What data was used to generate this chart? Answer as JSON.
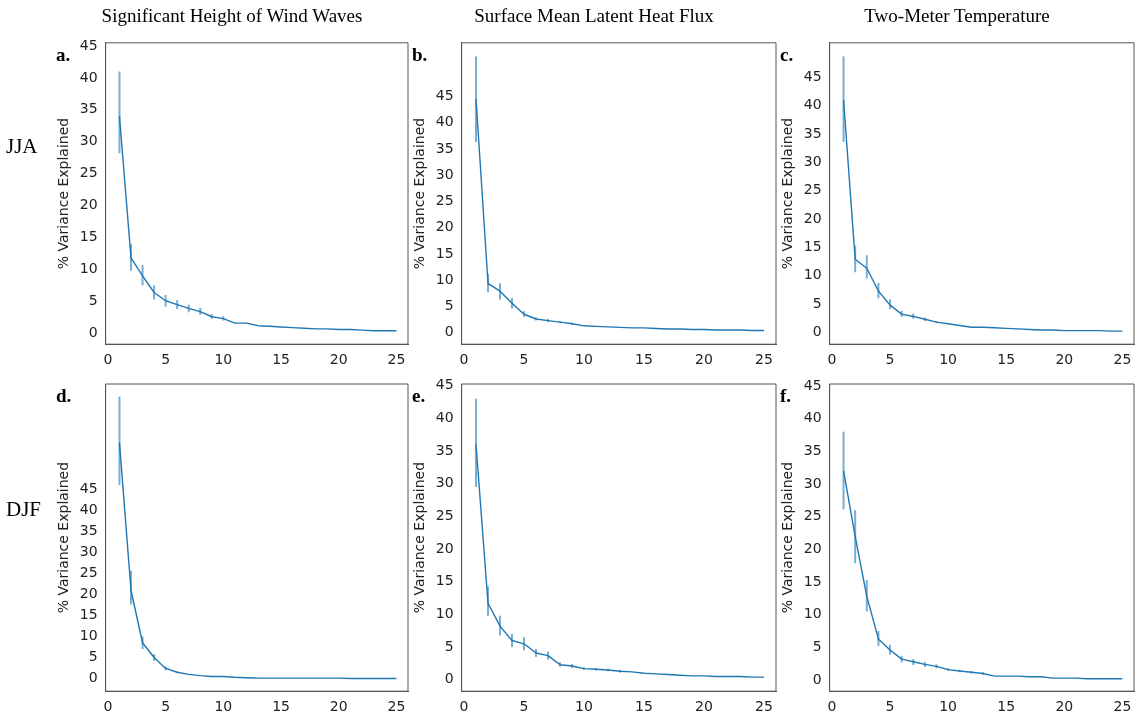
{
  "chart_data": [
    {
      "type": "line",
      "title": "Significant Height of Wind Waves",
      "ylabel": "% Variance Explained",
      "annotations": [
        "a.",
        "JJA"
      ],
      "color": "#1f77b4",
      "x": [
        1,
        2,
        3,
        4,
        5,
        6,
        7,
        8,
        9,
        10,
        11,
        12,
        13,
        14,
        15,
        16,
        17,
        18,
        19,
        20,
        21,
        22,
        23,
        24,
        25
      ],
      "values": [
        34,
        11.8,
        9,
        6.4,
        5.1,
        4.5,
        3.9,
        3.4,
        2.6,
        2.3,
        1.6,
        1.6,
        1.2,
        1.1,
        1,
        0.9,
        0.8,
        0.7,
        0.7,
        0.6,
        0.6,
        0.5,
        0.4,
        0.4,
        0.4
      ],
      "errors": [
        [
          28.2,
          41
        ],
        [
          9.8,
          14
        ],
        [
          7.5,
          10.7
        ],
        [
          5.3,
          7.5
        ],
        [
          4.2,
          6
        ],
        [
          3.8,
          5.2
        ],
        [
          3.3,
          4.5
        ],
        [
          2.9,
          4
        ],
        [
          2.3,
          3
        ],
        [
          2,
          2.7
        ],
        null,
        null,
        null,
        null,
        null,
        null,
        null,
        null,
        null,
        null,
        null,
        null,
        null,
        null,
        null
      ],
      "xlim": [
        -0.2,
        26
      ],
      "ylim": [
        -1.7,
        45.5
      ],
      "xticks": [
        0,
        5,
        10,
        15,
        20,
        25
      ],
      "yticks": [
        0,
        5,
        10,
        15,
        20,
        25,
        30,
        35,
        40,
        45
      ]
    },
    {
      "type": "line",
      "title": "Surface Mean Latent Heat Flux",
      "ylabel": "% Variance Explained",
      "annotations": [
        "b."
      ],
      "color": "#1f77b4",
      "x": [
        1,
        2,
        3,
        4,
        5,
        6,
        7,
        8,
        9,
        10,
        11,
        12,
        13,
        14,
        15,
        16,
        17,
        18,
        19,
        20,
        21,
        22,
        23,
        24,
        25
      ],
      "values": [
        44.5,
        9.4,
        7.9,
        5.6,
        3.5,
        2.6,
        2.3,
        2,
        1.7,
        1.3,
        1.2,
        1.1,
        1,
        0.9,
        0.9,
        0.8,
        0.7,
        0.7,
        0.6,
        0.6,
        0.5,
        0.5,
        0.5,
        0.4,
        0.4
      ],
      "errors": [
        [
          36.3,
          52.6
        ],
        [
          7.7,
          11.2
        ],
        [
          6.3,
          9.4
        ],
        [
          4.6,
          6.6
        ],
        [
          3,
          4.1
        ],
        [
          2.3,
          2.9
        ],
        [
          2,
          2.6
        ],
        [
          1.8,
          2.2
        ],
        [
          1.5,
          1.9
        ],
        null,
        null,
        null,
        null,
        null,
        null,
        null,
        null,
        null,
        null,
        null,
        null,
        null,
        null,
        null,
        null
      ],
      "xlim": [
        -0.2,
        26
      ],
      "ylim": [
        -2.2,
        55.2
      ],
      "xticks": [
        0,
        5,
        10,
        15,
        20,
        25
      ],
      "yticks": [
        0,
        5,
        10,
        15,
        20,
        25,
        30,
        35,
        40,
        45
      ]
    },
    {
      "type": "line",
      "title": "Two-Meter Temperature",
      "ylabel": "% Variance Explained",
      "annotations": [
        "c."
      ],
      "color": "#1f77b4",
      "x": [
        1,
        2,
        3,
        4,
        5,
        6,
        7,
        8,
        9,
        10,
        11,
        12,
        13,
        14,
        15,
        16,
        17,
        18,
        19,
        20,
        21,
        22,
        23,
        24,
        25
      ],
      "values": [
        41,
        12.9,
        11.3,
        7.3,
        4.8,
        3.2,
        2.8,
        2.3,
        1.8,
        1.5,
        1.2,
        0.9,
        0.9,
        0.8,
        0.7,
        0.6,
        0.5,
        0.4,
        0.4,
        0.3,
        0.3,
        0.3,
        0.3,
        0.2,
        0.2
      ],
      "errors": [
        [
          33.6,
          48.7
        ],
        [
          10.6,
          15.3
        ],
        [
          9.5,
          13.6
        ],
        [
          6,
          8.7
        ],
        [
          4.1,
          5.8
        ],
        [
          2.7,
          3.8
        ],
        [
          2.4,
          3.3
        ],
        [
          2,
          2.6
        ],
        [
          1.6,
          2
        ],
        null,
        null,
        null,
        null,
        null,
        null,
        null,
        null,
        null,
        null,
        null,
        null,
        null,
        null,
        null,
        null
      ],
      "xlim": [
        -0.2,
        26
      ],
      "ylim": [
        -2.1,
        51.1
      ],
      "xticks": [
        0,
        5,
        10,
        15,
        20,
        25
      ],
      "yticks": [
        0,
        5,
        10,
        15,
        20,
        25,
        30,
        35,
        40,
        45
      ]
    },
    {
      "type": "line",
      "ylabel": "% Variance Explained",
      "annotations": [
        "d.",
        "DJF"
      ],
      "color": "#1f77b4",
      "x": [
        1,
        2,
        3,
        4,
        5,
        6,
        7,
        8,
        9,
        10,
        11,
        12,
        13,
        14,
        15,
        16,
        17,
        18,
        19,
        20,
        21,
        22,
        23,
        24,
        25
      ],
      "values": [
        56,
        20.9,
        8.5,
        5,
        2.4,
        1.5,
        1,
        0.7,
        0.5,
        0.5,
        0.3,
        0.2,
        0.1,
        0.1,
        0.1,
        0.1,
        0.1,
        0.1,
        0.1,
        0.1,
        0,
        0,
        0,
        0,
        0
      ],
      "errors": [
        [
          45.9,
          66.9
        ],
        [
          17.6,
          25.6
        ],
        [
          7,
          10
        ],
        [
          4.2,
          5.8
        ],
        [
          2,
          2.9
        ],
        [
          1.3,
          1.7
        ],
        null,
        null,
        null,
        null,
        null,
        null,
        null,
        null,
        null,
        null,
        null,
        null,
        null,
        null,
        null,
        null,
        null,
        null,
        null
      ],
      "xlim": [
        -0.2,
        26
      ],
      "ylim": [
        -3,
        69.9
      ],
      "xticks": [
        0,
        5,
        10,
        15,
        20,
        25
      ],
      "yticks": [
        0,
        5,
        10,
        15,
        20,
        25,
        30,
        35,
        40,
        45
      ]
    },
    {
      "type": "line",
      "ylabel": "% Variance Explained",
      "annotations": [
        "e."
      ],
      "color": "#1f77b4",
      "x": [
        1,
        2,
        3,
        4,
        5,
        6,
        7,
        8,
        9,
        10,
        11,
        12,
        13,
        14,
        15,
        16,
        17,
        18,
        19,
        20,
        21,
        22,
        23,
        24,
        25
      ],
      "values": [
        36,
        11.7,
        8.2,
        6,
        5.5,
        4.1,
        3.7,
        2.3,
        2.1,
        1.7,
        1.6,
        1.5,
        1.3,
        1.2,
        1,
        0.9,
        0.8,
        0.7,
        0.6,
        0.6,
        0.5,
        0.5,
        0.5,
        0.4,
        0.4
      ],
      "errors": [
        [
          29.5,
          43
        ],
        [
          9.8,
          14.3
        ],
        [
          6.8,
          9.8
        ],
        [
          5,
          7
        ],
        [
          4.5,
          6.5
        ],
        [
          3.5,
          4.7
        ],
        [
          3.1,
          4.3
        ],
        [
          2,
          2.7
        ],
        [
          1.8,
          2.4
        ],
        [
          1.5,
          1.9
        ],
        [
          1.4,
          1.8
        ],
        [
          1.3,
          1.7
        ],
        [
          1.1,
          1.5
        ],
        null,
        null,
        null,
        null,
        null,
        null,
        null,
        null,
        null,
        null,
        null,
        null
      ],
      "xlim": [
        -0.2,
        26
      ],
      "ylim": [
        -1.75,
        45.25
      ],
      "xticks": [
        0,
        5,
        10,
        15,
        20,
        25
      ],
      "yticks": [
        0,
        5,
        10,
        15,
        20,
        25,
        30,
        35,
        40,
        45
      ]
    },
    {
      "type": "line",
      "ylabel": "% Variance Explained",
      "annotations": [
        "f."
      ],
      "color": "#1f77b4",
      "x": [
        1,
        2,
        3,
        4,
        5,
        6,
        7,
        8,
        9,
        10,
        11,
        12,
        13,
        14,
        15,
        16,
        17,
        18,
        19,
        20,
        21,
        22,
        23,
        24,
        25
      ],
      "values": [
        32,
        22,
        12.8,
        6.3,
        4.6,
        3.2,
        2.8,
        2.4,
        2.1,
        1.6,
        1.4,
        1.2,
        1,
        0.6,
        0.6,
        0.6,
        0.5,
        0.5,
        0.3,
        0.3,
        0.3,
        0.2,
        0.2,
        0.2,
        0.2
      ],
      "errors": [
        [
          26.1,
          38
        ],
        [
          17.9,
          26
        ],
        [
          10.5,
          15.3
        ],
        [
          5.2,
          7.5
        ],
        [
          3.9,
          5.4
        ],
        [
          2.7,
          3.7
        ],
        [
          2.3,
          3.2
        ],
        [
          2,
          2.8
        ],
        [
          1.8,
          2.4
        ],
        [
          1.4,
          1.8
        ],
        [
          1.2,
          1.6
        ],
        [
          1,
          1.4
        ],
        [
          0.8,
          1.2
        ],
        null,
        null,
        null,
        null,
        null,
        null,
        null,
        null,
        null,
        null,
        null,
        null
      ],
      "xlim": [
        -0.2,
        26
      ],
      "ylim": [
        -1.7,
        45.3
      ],
      "xticks": [
        0,
        5,
        10,
        15,
        20,
        25
      ],
      "yticks": [
        0,
        5,
        10,
        15,
        20,
        25,
        30,
        35,
        40,
        45
      ]
    }
  ]
}
